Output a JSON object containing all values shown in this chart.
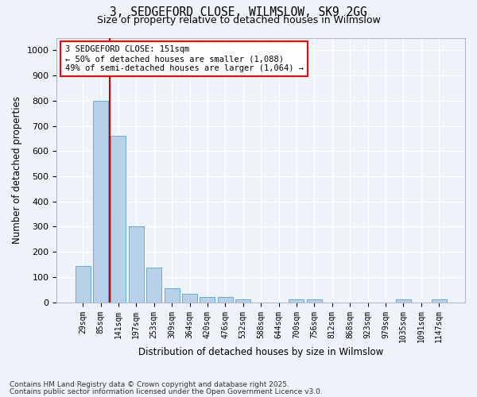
{
  "title_line1": "3, SEDGEFORD CLOSE, WILMSLOW, SK9 2GG",
  "title_line2": "Size of property relative to detached houses in Wilmslow",
  "xlabel": "Distribution of detached houses by size in Wilmslow",
  "ylabel": "Number of detached properties",
  "categories": [
    "29sqm",
    "85sqm",
    "141sqm",
    "197sqm",
    "253sqm",
    "309sqm",
    "364sqm",
    "420sqm",
    "476sqm",
    "532sqm",
    "588sqm",
    "644sqm",
    "700sqm",
    "756sqm",
    "812sqm",
    "868sqm",
    "923sqm",
    "979sqm",
    "1035sqm",
    "1091sqm",
    "1147sqm"
  ],
  "values": [
    145,
    800,
    660,
    300,
    138,
    55,
    33,
    20,
    20,
    10,
    0,
    0,
    10,
    10,
    0,
    0,
    0,
    0,
    10,
    0,
    10
  ],
  "bar_color": "#b8d0e8",
  "bar_edge_color": "#6aaad4",
  "background_color": "#eef2f9",
  "grid_color": "#ffffff",
  "annotation_box_text": "3 SEDGEFORD CLOSE: 151sqm\n← 50% of detached houses are smaller (1,088)\n49% of semi-detached houses are larger (1,064) →",
  "vline_color": "#cc0000",
  "vline_x_index": 1.5,
  "ylim": [
    0,
    1050
  ],
  "yticks": [
    0,
    100,
    200,
    300,
    400,
    500,
    600,
    700,
    800,
    900,
    1000
  ],
  "footnote1": "Contains HM Land Registry data © Crown copyright and database right 2025.",
  "footnote2": "Contains public sector information licensed under the Open Government Licence v3.0.",
  "figsize": [
    6.0,
    5.0
  ],
  "dpi": 100
}
